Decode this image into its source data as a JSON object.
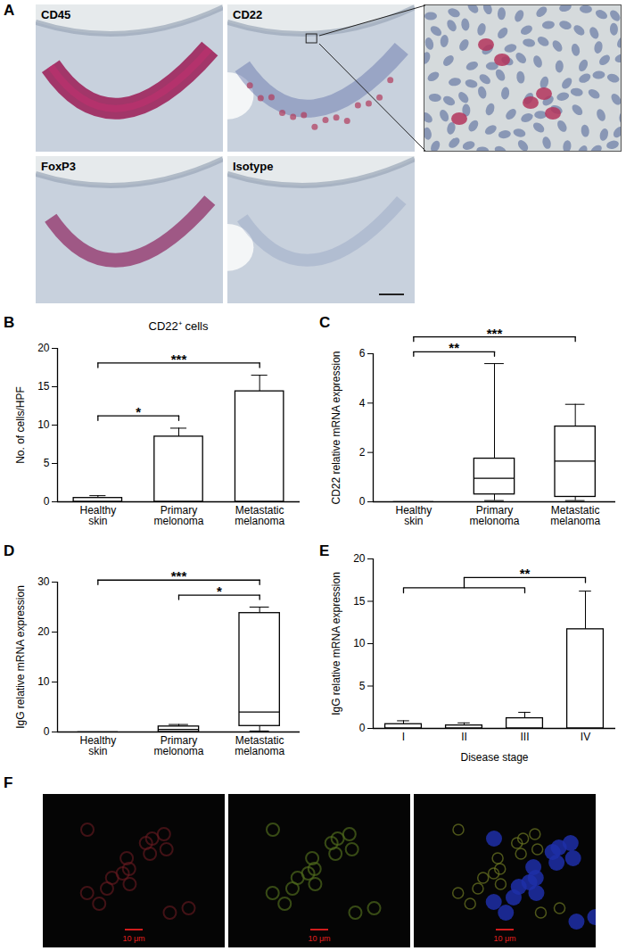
{
  "images": [
    {
      "panel": "A",
      "labels": [
        "CD45",
        "CD22",
        "FoxP3",
        "Isotype"
      ]
    },
    {
      "panel": "F",
      "scale_labels": [
        "10 μm",
        "10 μm",
        "10 μm"
      ]
    }
  ],
  "chart_data": [
    {
      "panel": "B",
      "type": "bar",
      "title": "CD22⁺ cells",
      "categories": [
        "Healthy skin",
        "Primary melonoma",
        "Metastatic melanoma"
      ],
      "values": [
        0.5,
        8.5,
        14.4
      ],
      "errors": [
        0.3,
        1.1,
        2.1
      ],
      "color": "#ffffff",
      "ylabel": "No. of cells/HPF",
      "ylim": [
        0,
        20
      ],
      "yticks": [
        0,
        5,
        10,
        15,
        20
      ],
      "comparisons": [
        {
          "groups": [
            [
              "Healthy skin"
            ],
            [
              "Primary melonoma"
            ]
          ],
          "label": "*"
        },
        {
          "groups": [
            [
              "Healthy skin"
            ],
            [
              "Metastatic melanoma"
            ]
          ],
          "label": "***"
        }
      ]
    },
    {
      "panel": "C",
      "type": "box",
      "categories": [
        "Healthy skin",
        "Primary melonoma",
        "Metastatic melanoma"
      ],
      "boxes": [
        {
          "min": 0,
          "q1": 0,
          "median": 0,
          "q3": 0,
          "max": 0
        },
        {
          "min": 0.05,
          "q1": 0.3,
          "median": 0.95,
          "q3": 1.75,
          "max": 5.6
        },
        {
          "min": 0.05,
          "q1": 0.2,
          "median": 1.65,
          "q3": 3.05,
          "max": 3.95
        }
      ],
      "color": "#ffffff",
      "ylabel": "CD22 relative mRNA expression",
      "ylim": [
        0,
        6
      ],
      "yticks": [
        0,
        2,
        4,
        6
      ],
      "comparisons": [
        {
          "groups": [
            [
              "Healthy skin"
            ],
            [
              "Primary melonoma"
            ]
          ],
          "label": "**"
        },
        {
          "groups": [
            [
              "Healthy skin"
            ],
            [
              "Metastatic melanoma"
            ]
          ],
          "label": "***"
        }
      ]
    },
    {
      "panel": "D",
      "type": "box",
      "categories": [
        "Healthy skin",
        "Primary melonoma",
        "Metastatic melanoma"
      ],
      "boxes": [
        {
          "min": 0,
          "q1": 0,
          "median": 0,
          "q3": 0,
          "max": 0
        },
        {
          "min": 0,
          "q1": 0,
          "median": 0.5,
          "q3": 1.1,
          "max": 1.5
        },
        {
          "min": 0.2,
          "q1": 1.2,
          "median": 4,
          "q3": 23.8,
          "max": 25
        }
      ],
      "color": "#ffffff",
      "ylabel": "IgG relative mRNA expression",
      "ylim": [
        0,
        30
      ],
      "yticks": [
        0,
        10,
        20,
        30
      ],
      "comparisons": [
        {
          "groups": [
            [
              "Primary melonoma"
            ],
            [
              "Metastatic melanoma"
            ]
          ],
          "label": "*"
        },
        {
          "groups": [
            [
              "Healthy skin"
            ],
            [
              "Metastatic melanoma"
            ]
          ],
          "label": "***"
        }
      ]
    },
    {
      "panel": "E",
      "type": "bar",
      "categories": [
        "I",
        "II",
        "III",
        "IV"
      ],
      "values": [
        0.5,
        0.35,
        1.2,
        11.7
      ],
      "errors": [
        0.4,
        0.3,
        0.7,
        4.5
      ],
      "color": "#ffffff",
      "xlabel": "Disease stage",
      "ylabel": "IgG relative mRNA expression",
      "ylim": [
        0,
        20
      ],
      "yticks": [
        0,
        5,
        10,
        15,
        20
      ],
      "comparisons": [
        {
          "groups": [
            [
              "I",
              "II",
              "III"
            ],
            [
              "IV"
            ]
          ],
          "label": "**"
        }
      ]
    }
  ]
}
